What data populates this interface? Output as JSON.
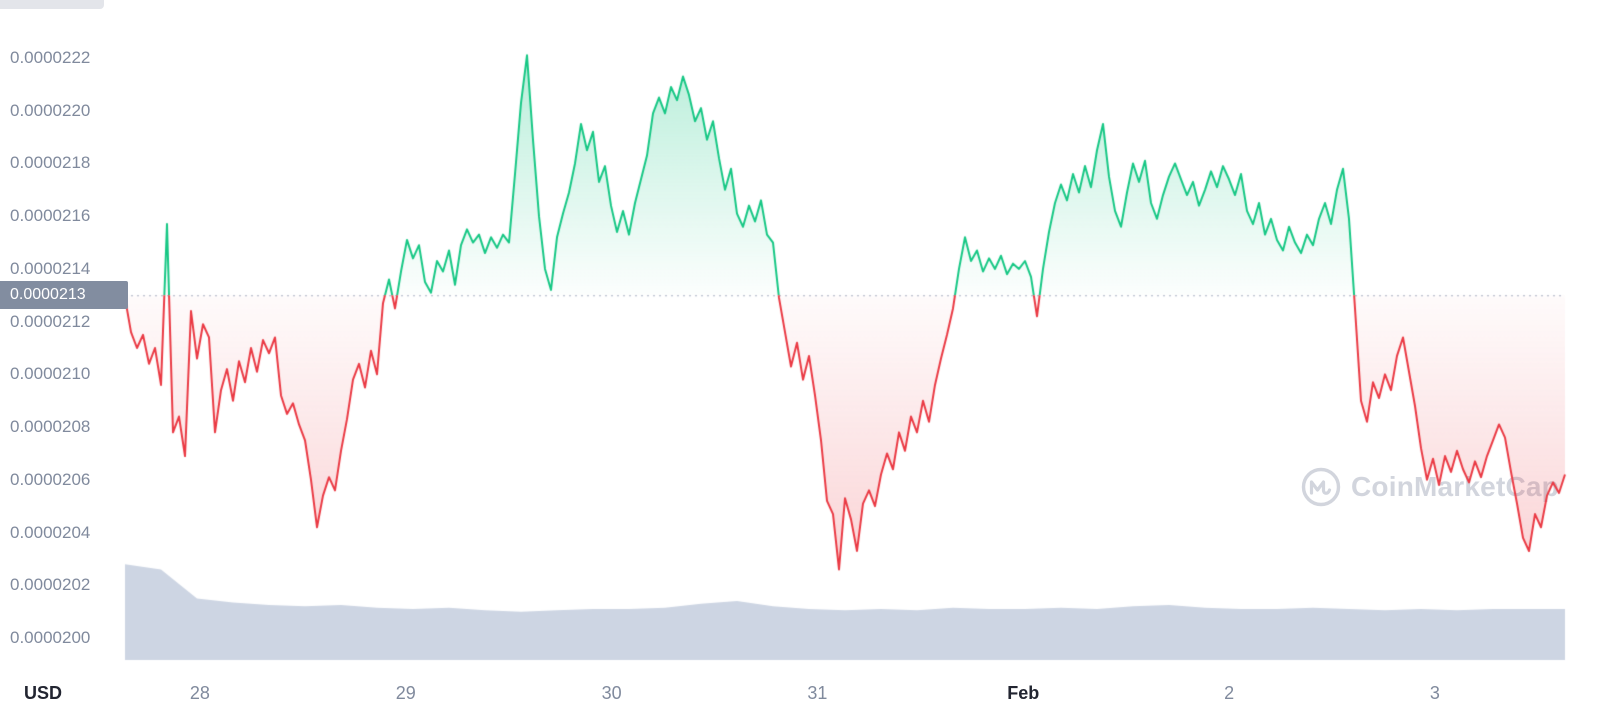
{
  "footer": {
    "currency_label": "USD"
  },
  "watermark": {
    "text": "CoinMarketCap"
  },
  "colors": {
    "background": "#ffffff",
    "up": "#16c784",
    "down": "#ea3943",
    "axis_text": "#808a9d",
    "bold_text": "#222531",
    "badge_bg": "#828da0",
    "badge_text": "#ffffff",
    "volume_fill": "#cdd5e3",
    "baseline_dots": "#a9b2c4",
    "watermark": "#d2d5dd"
  },
  "chart_data": {
    "type": "line",
    "grid": "none",
    "legend": "none",
    "y_axis": {
      "currency": "USD",
      "value_scale": 1e-07,
      "tick_labels": [
        "0.0000222",
        "0.0000220",
        "0.0000218",
        "0.0000216",
        "0.0000214",
        "0.0000212",
        "0.0000210",
        "0.0000208",
        "0.0000206",
        "0.0000204",
        "0.0000202",
        "0.0000200"
      ],
      "tick_values_e7": [
        222,
        220,
        218,
        216,
        214,
        212,
        210,
        208,
        206,
        204,
        202,
        200
      ]
    },
    "x_axis": {
      "unit": "days since Jan 28",
      "range_days": [
        -0.364,
        6.632
      ],
      "tick_labels": [
        "28",
        "29",
        "30",
        "31",
        "Feb",
        "2",
        "3"
      ],
      "tick_positions_days": [
        0,
        1,
        2,
        3,
        4,
        5,
        6
      ],
      "bold_ticks": [
        "Feb"
      ]
    },
    "baseline": {
      "label": "0.0000213",
      "value_e7": 213
    },
    "series": [
      {
        "name": "price",
        "type": "line",
        "color_up": "#16c784",
        "color_down": "#ea3943",
        "values_e7": [
          212.9,
          211.6,
          211.0,
          211.5,
          210.4,
          211.0,
          209.6,
          215.7,
          207.8,
          208.4,
          206.9,
          212.4,
          210.6,
          211.9,
          211.4,
          207.8,
          209.4,
          210.2,
          209.0,
          210.5,
          209.7,
          211.0,
          210.1,
          211.3,
          210.8,
          211.4,
          209.2,
          208.5,
          208.9,
          208.1,
          207.5,
          206.0,
          204.2,
          205.4,
          206.1,
          205.6,
          207.1,
          208.3,
          209.8,
          210.4,
          209.5,
          210.9,
          210.0,
          212.7,
          213.6,
          212.5,
          213.9,
          215.1,
          214.4,
          214.9,
          213.5,
          213.1,
          214.3,
          213.9,
          214.7,
          213.4,
          214.9,
          215.5,
          215.0,
          215.3,
          214.6,
          215.2,
          214.8,
          215.3,
          215.0,
          217.6,
          220.3,
          222.1,
          218.9,
          216.0,
          214.0,
          213.2,
          215.2,
          216.1,
          216.9,
          218.0,
          219.5,
          218.5,
          219.2,
          217.3,
          217.9,
          216.4,
          215.4,
          216.2,
          215.3,
          216.5,
          217.4,
          218.3,
          219.9,
          220.5,
          219.9,
          220.9,
          220.4,
          221.3,
          220.6,
          219.6,
          220.1,
          218.9,
          219.6,
          218.2,
          217.0,
          217.8,
          216.1,
          215.6,
          216.4,
          215.8,
          216.6,
          215.3,
          215.0,
          212.9,
          211.6,
          210.3,
          211.2,
          209.8,
          210.7,
          209.2,
          207.5,
          205.2,
          204.7,
          202.6,
          205.3,
          204.5,
          203.3,
          205.1,
          205.6,
          205.0,
          206.2,
          207.0,
          206.4,
          207.8,
          207.1,
          208.4,
          207.8,
          209.0,
          208.2,
          209.6,
          210.6,
          211.5,
          212.5,
          214.0,
          215.2,
          214.3,
          214.7,
          213.9,
          214.4,
          214.0,
          214.5,
          213.8,
          214.2,
          214.0,
          214.3,
          213.7,
          212.2,
          214.0,
          215.4,
          216.5,
          217.2,
          216.6,
          217.6,
          216.9,
          217.9,
          217.1,
          218.5,
          219.5,
          217.5,
          216.2,
          215.6,
          216.9,
          218.0,
          217.3,
          218.1,
          216.5,
          215.9,
          216.8,
          217.5,
          218.0,
          217.4,
          216.8,
          217.3,
          216.4,
          217.0,
          217.7,
          217.1,
          217.9,
          217.4,
          216.8,
          217.6,
          216.2,
          215.7,
          216.5,
          215.3,
          215.9,
          215.1,
          214.7,
          215.6,
          215.0,
          214.6,
          215.3,
          214.9,
          215.9,
          216.5,
          215.7,
          217.0,
          217.8,
          215.9,
          212.5,
          209.0,
          208.2,
          209.7,
          209.1,
          210.0,
          209.4,
          210.7,
          211.4,
          210.1,
          208.8,
          207.2,
          206.0,
          206.8,
          205.8,
          206.9,
          206.3,
          207.1,
          206.4,
          205.9,
          206.7,
          206.1,
          206.9,
          207.5,
          208.1,
          207.6,
          206.3,
          205.1,
          203.8,
          203.3,
          204.7,
          204.2,
          205.4,
          205.9,
          205.5,
          206.2
        ]
      },
      {
        "name": "volume-area",
        "type": "area",
        "color": "#cdd5e3",
        "values_e7": [
          202.8,
          202.6,
          201.5,
          201.35,
          201.25,
          201.2,
          201.25,
          201.15,
          201.1,
          201.15,
          201.05,
          201.0,
          201.05,
          201.1,
          201.1,
          201.15,
          201.3,
          201.4,
          201.2,
          201.1,
          201.05,
          201.1,
          201.05,
          201.15,
          201.1,
          201.1,
          201.15,
          201.1,
          201.2,
          201.25,
          201.15,
          201.1,
          201.1,
          201.15,
          201.1,
          201.05,
          201.1,
          201.05,
          201.1,
          201.1,
          201.1
        ]
      }
    ]
  }
}
